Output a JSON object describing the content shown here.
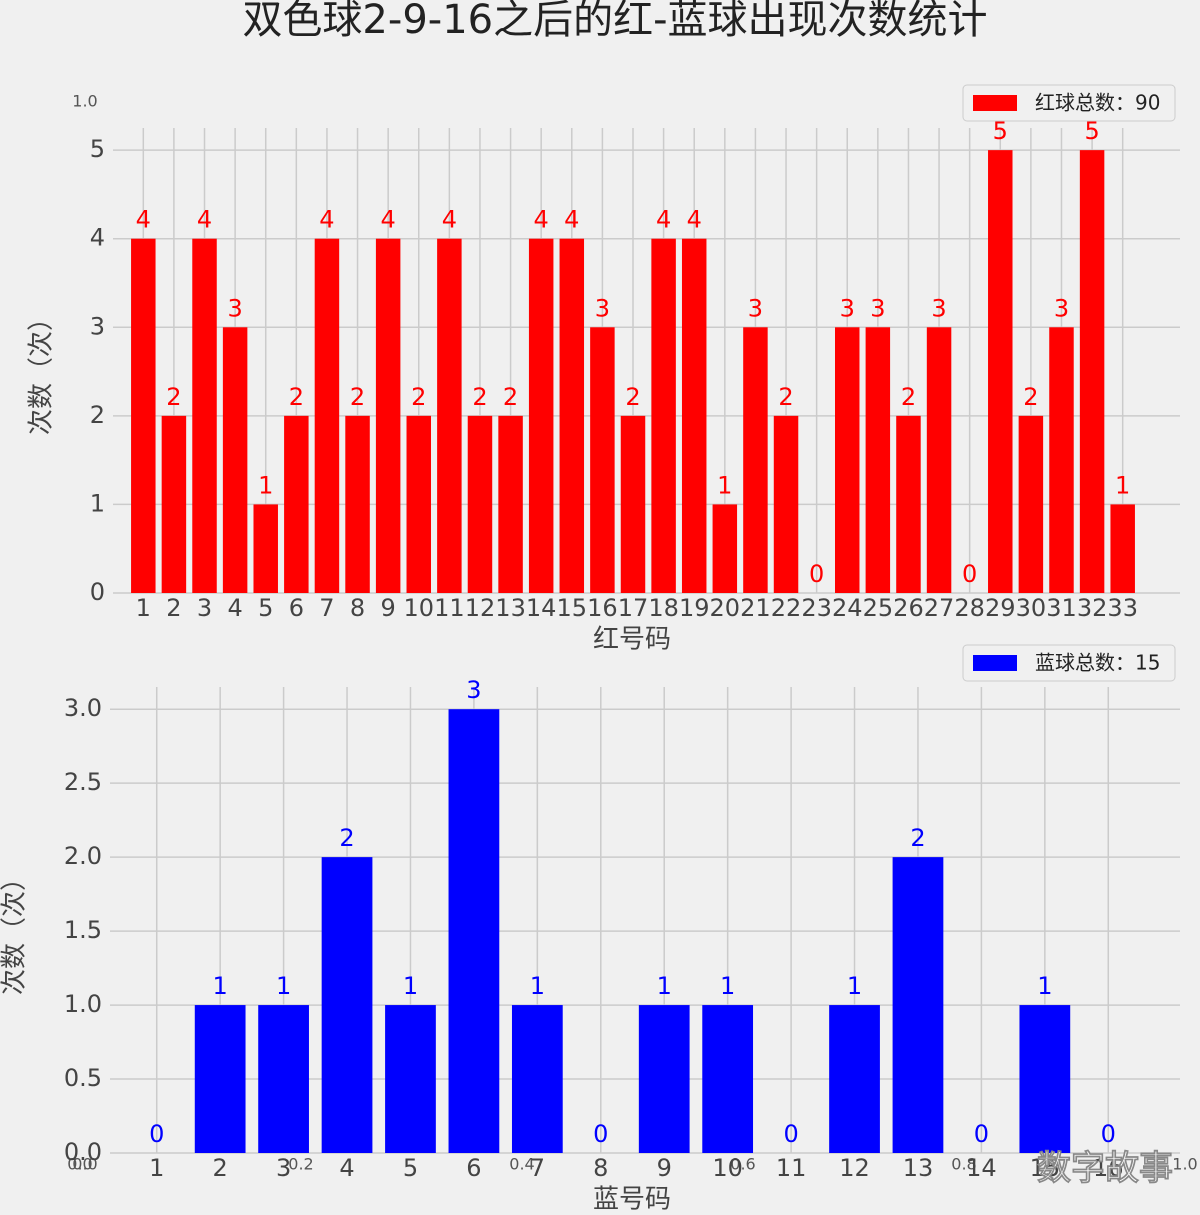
{
  "title": "双色球2-9-16之后的红-蓝球出现次数统计",
  "watermark": "数字故事",
  "chart_data": [
    {
      "type": "bar",
      "xlabel": "红号码",
      "ylabel": "次数（次）",
      "categories": [
        "1",
        "2",
        "3",
        "4",
        "5",
        "6",
        "7",
        "8",
        "9",
        "10",
        "11",
        "12",
        "13",
        "14",
        "15",
        "16",
        "17",
        "18",
        "19",
        "20",
        "21",
        "22",
        "23",
        "24",
        "25",
        "26",
        "27",
        "28",
        "29",
        "30",
        "31",
        "32",
        "33"
      ],
      "series": [
        {
          "name": "红球总数：90",
          "color": "#ff0000",
          "values": [
            4,
            2,
            4,
            3,
            1,
            2,
            4,
            2,
            4,
            2,
            4,
            2,
            2,
            4,
            4,
            3,
            2,
            4,
            4,
            1,
            3,
            2,
            0,
            3,
            3,
            2,
            3,
            0,
            5,
            2,
            3,
            5,
            1
          ]
        }
      ],
      "ylim": [
        0,
        5.25
      ],
      "yticks": [
        0,
        1,
        2,
        3,
        4,
        5
      ],
      "grid": true,
      "legend": "upper right"
    },
    {
      "type": "bar",
      "xlabel": "蓝号码",
      "ylabel": "次数（次）",
      "categories": [
        "1",
        "2",
        "3",
        "4",
        "5",
        "6",
        "7",
        "8",
        "9",
        "10",
        "11",
        "12",
        "13",
        "14",
        "15",
        "16"
      ],
      "series": [
        {
          "name": "蓝球总数：15",
          "color": "#0000ff",
          "values": [
            0,
            1,
            1,
            2,
            1,
            3,
            1,
            0,
            1,
            1,
            0,
            1,
            2,
            0,
            1,
            0
          ]
        }
      ],
      "ylim": [
        0,
        3.15
      ],
      "yticks": [
        {
          "value": 0,
          "label": "0.0"
        },
        0.5,
        {
          "value": 1,
          "label": "1.0"
        },
        1.5,
        {
          "value": 2,
          "label": "2.0"
        },
        2.5,
        {
          "value": 3,
          "label": "3.0"
        }
      ],
      "grid": true,
      "legend": "upper right"
    },
    {
      "type": "axes",
      "xlim": [
        0,
        1
      ],
      "xticks": [
        {
          "value": 0,
          "label": "0.0"
        },
        0.2,
        0.4,
        0.6,
        0.8,
        {
          "value": 1,
          "label": "1.0"
        }
      ],
      "ylim": [
        0,
        1
      ],
      "yticks": [
        {
          "value": 0,
          "label": "0.0"
        },
        {
          "value": 1,
          "label": "1.0"
        }
      ]
    }
  ]
}
